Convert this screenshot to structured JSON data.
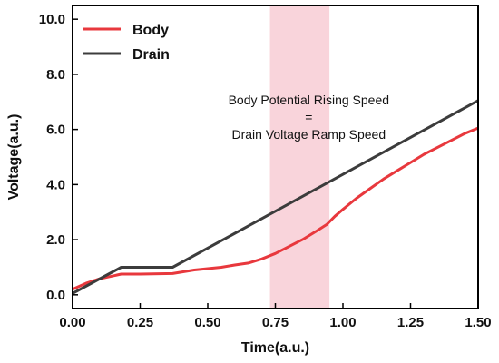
{
  "chart_data": {
    "type": "line",
    "xlabel": "Time(a.u.)",
    "ylabel": "Voltage(a.u.)",
    "xlim": [
      0,
      1.5
    ],
    "ylim": [
      -0.5,
      10.5
    ],
    "x_ticks": [
      "0.00",
      "0.25",
      "0.50",
      "0.75",
      "1.00",
      "1.25",
      "1.50"
    ],
    "x_tick_values": [
      0,
      0.25,
      0.5,
      0.75,
      1.0,
      1.25,
      1.5
    ],
    "y_ticks": [
      "0.0",
      "2.0",
      "4.0",
      "6.0",
      "8.0",
      "10.0"
    ],
    "y_tick_values": [
      0,
      2,
      4,
      6,
      8,
      10
    ],
    "grid": false,
    "legend_position": "top-left",
    "series": [
      {
        "name": "Body",
        "color": "#e8383d",
        "x": [
          0.0,
          0.05,
          0.1,
          0.18,
          0.25,
          0.37,
          0.45,
          0.5,
          0.55,
          0.6,
          0.65,
          0.7,
          0.75,
          0.8,
          0.85,
          0.9,
          0.94,
          0.97,
          1.0,
          1.05,
          1.1,
          1.15,
          1.2,
          1.25,
          1.3,
          1.35,
          1.4,
          1.45,
          1.5
        ],
        "values": [
          0.2,
          0.42,
          0.58,
          0.75,
          0.75,
          0.77,
          0.9,
          0.95,
          1.0,
          1.08,
          1.15,
          1.3,
          1.5,
          1.75,
          2.0,
          2.3,
          2.55,
          2.85,
          3.1,
          3.5,
          3.85,
          4.2,
          4.5,
          4.8,
          5.1,
          5.35,
          5.6,
          5.85,
          6.05
        ]
      },
      {
        "name": "Drain",
        "color": "#3c3c3c",
        "x": [
          0.0,
          0.18,
          0.37,
          1.5
        ],
        "values": [
          0.05,
          1.0,
          1.0,
          7.05
        ]
      }
    ],
    "highlight_band": {
      "x_start": 0.73,
      "x_end": 0.95,
      "color": "#f7c6cf"
    },
    "annotations": [
      "Body Potential Rising Speed",
      "=",
      "Drain Voltage Ramp Speed"
    ]
  }
}
